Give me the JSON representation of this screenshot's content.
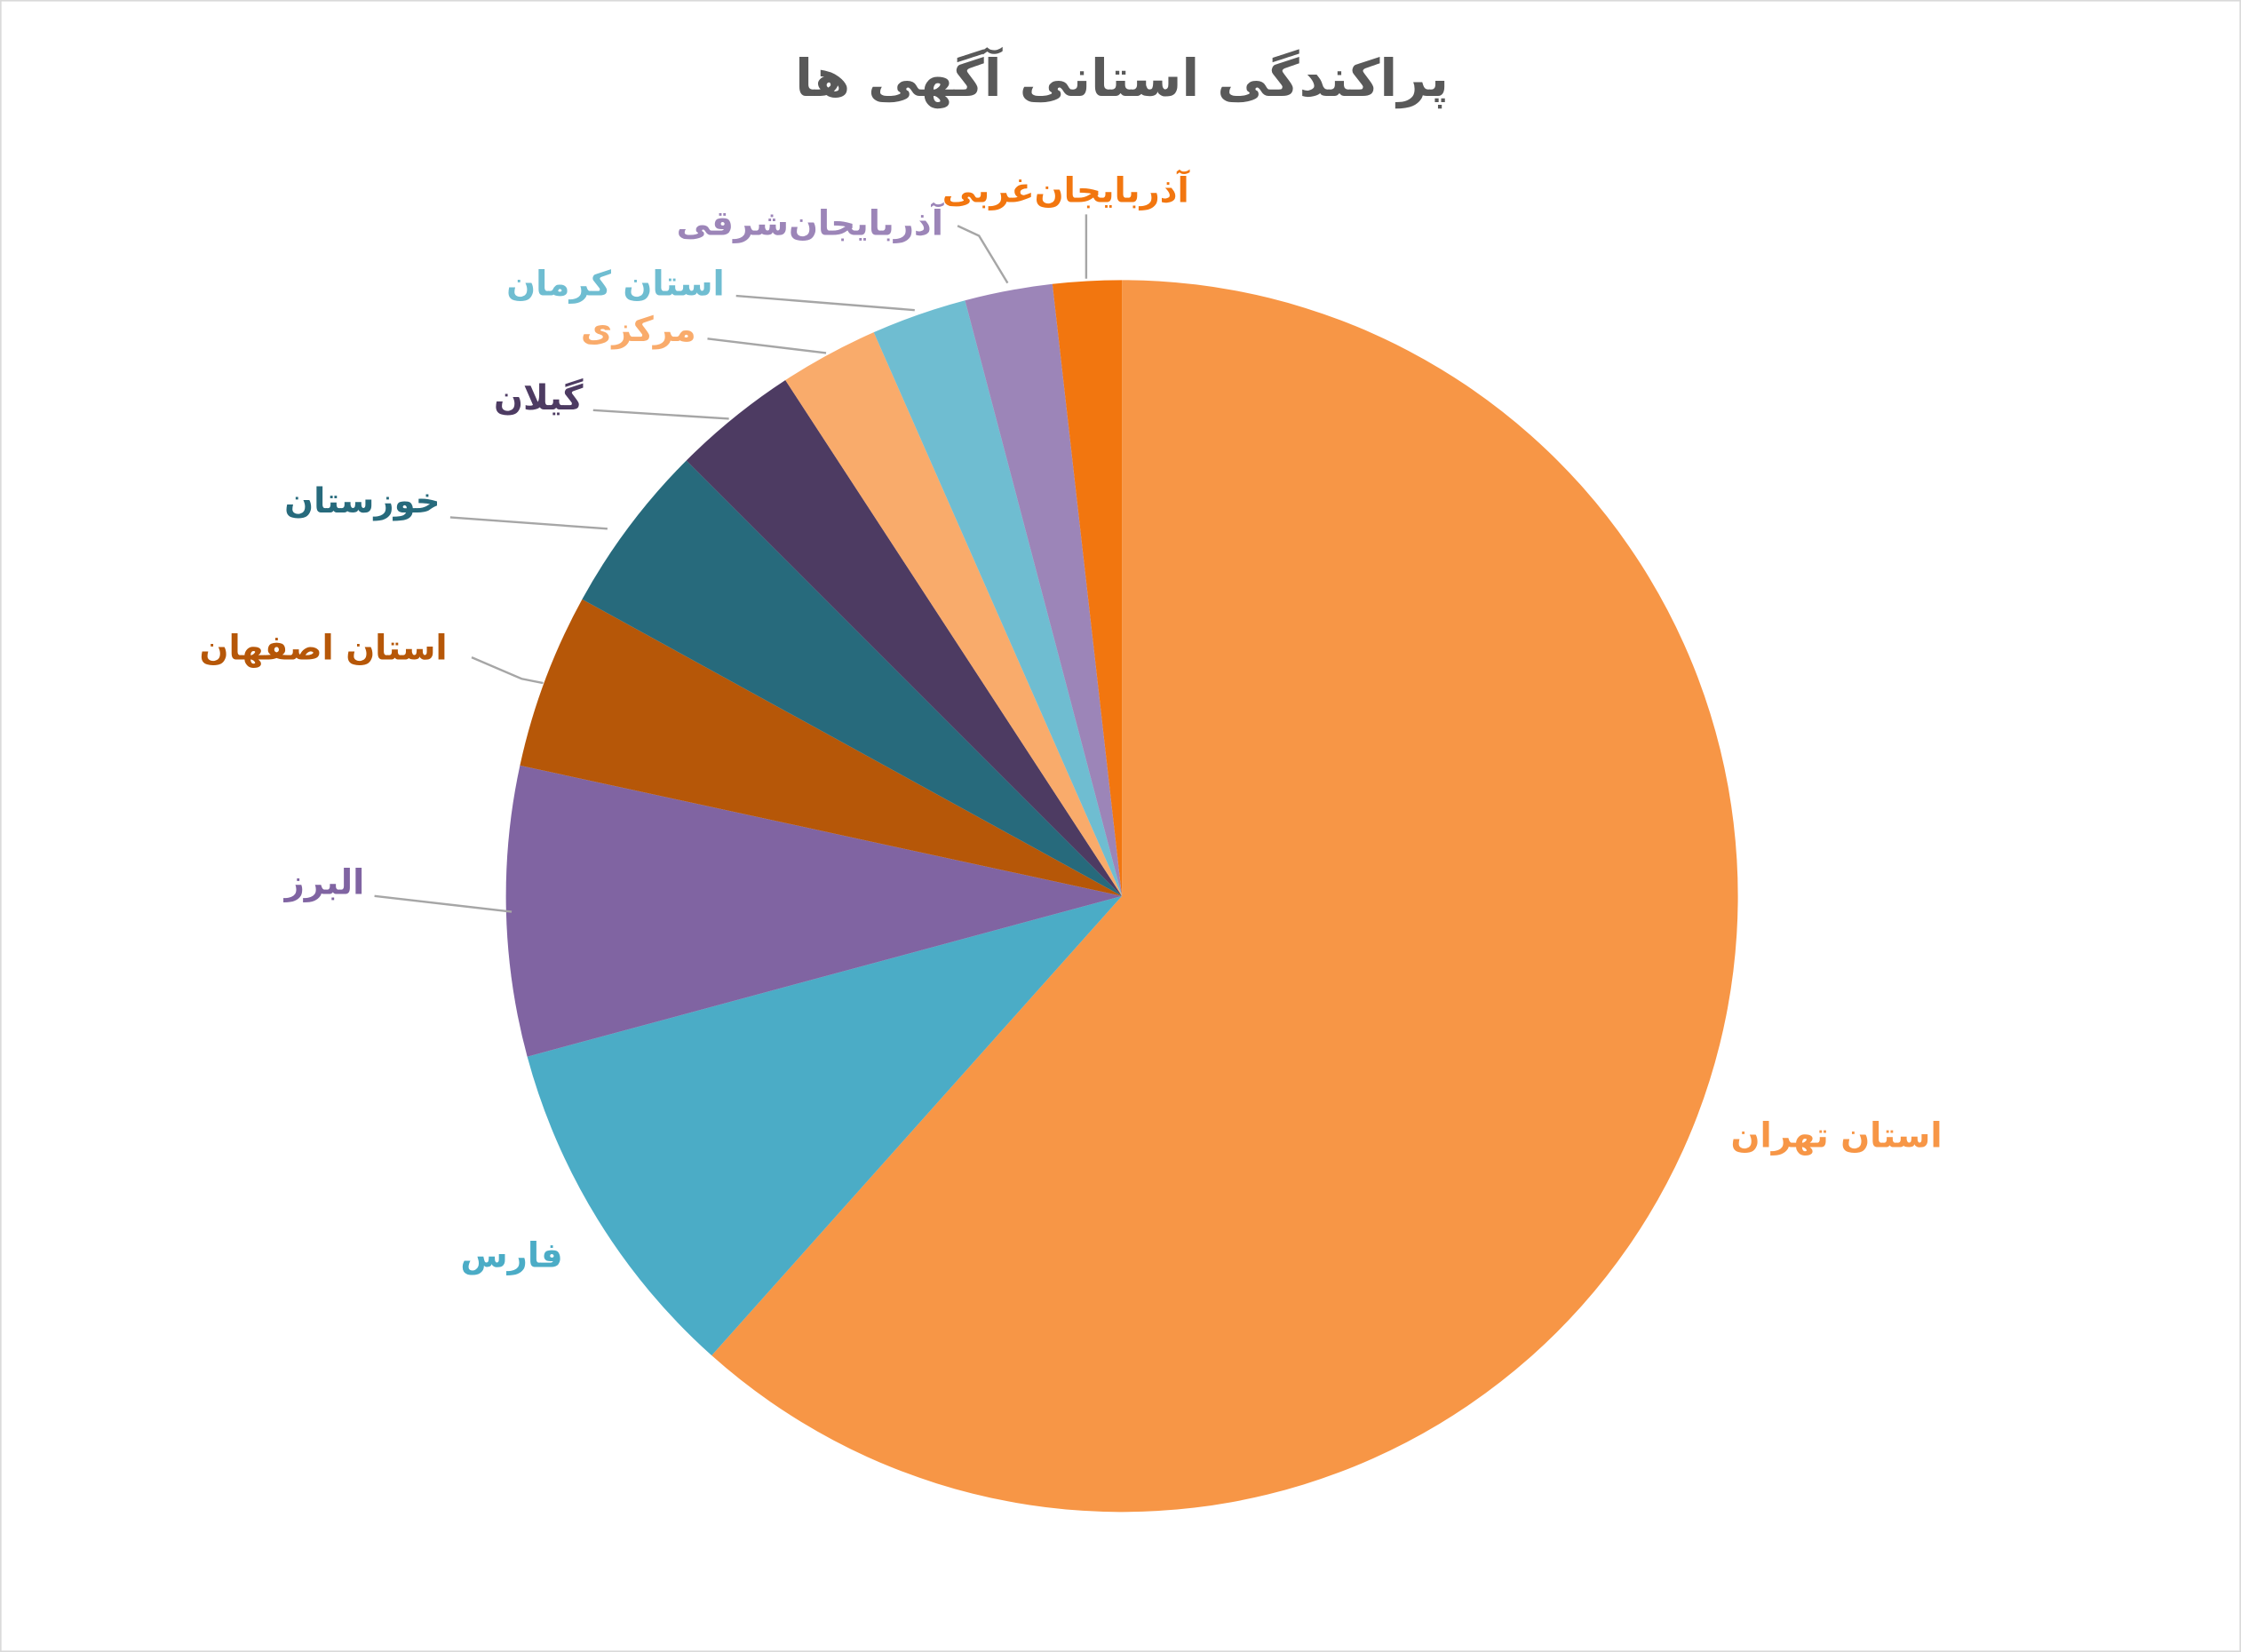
{
  "chart_data": {
    "type": "pie",
    "title": "پراکندگی استانی آگهی ها",
    "categories": [
      "استان تهران",
      "فارس",
      "البرز",
      "استان اصفهان",
      "خوزستان",
      "گیلان",
      "مرکزی",
      "استان کرمان",
      "آذربایجان‌شرقی",
      "آذربایجان‌غربی"
    ],
    "values": [
      61.6,
      9.2,
      7.6,
      4.6,
      4.5,
      3.3,
      2.6,
      2.5,
      2.3,
      1.8
    ],
    "colors": [
      "#f79646",
      "#4bacc6",
      "#8064a2",
      "#b65708",
      "#276a7c",
      "#4d3b62",
      "#f9ab6b",
      "#6fbdd1",
      "#9c85b8",
      "#f2760f"
    ]
  }
}
